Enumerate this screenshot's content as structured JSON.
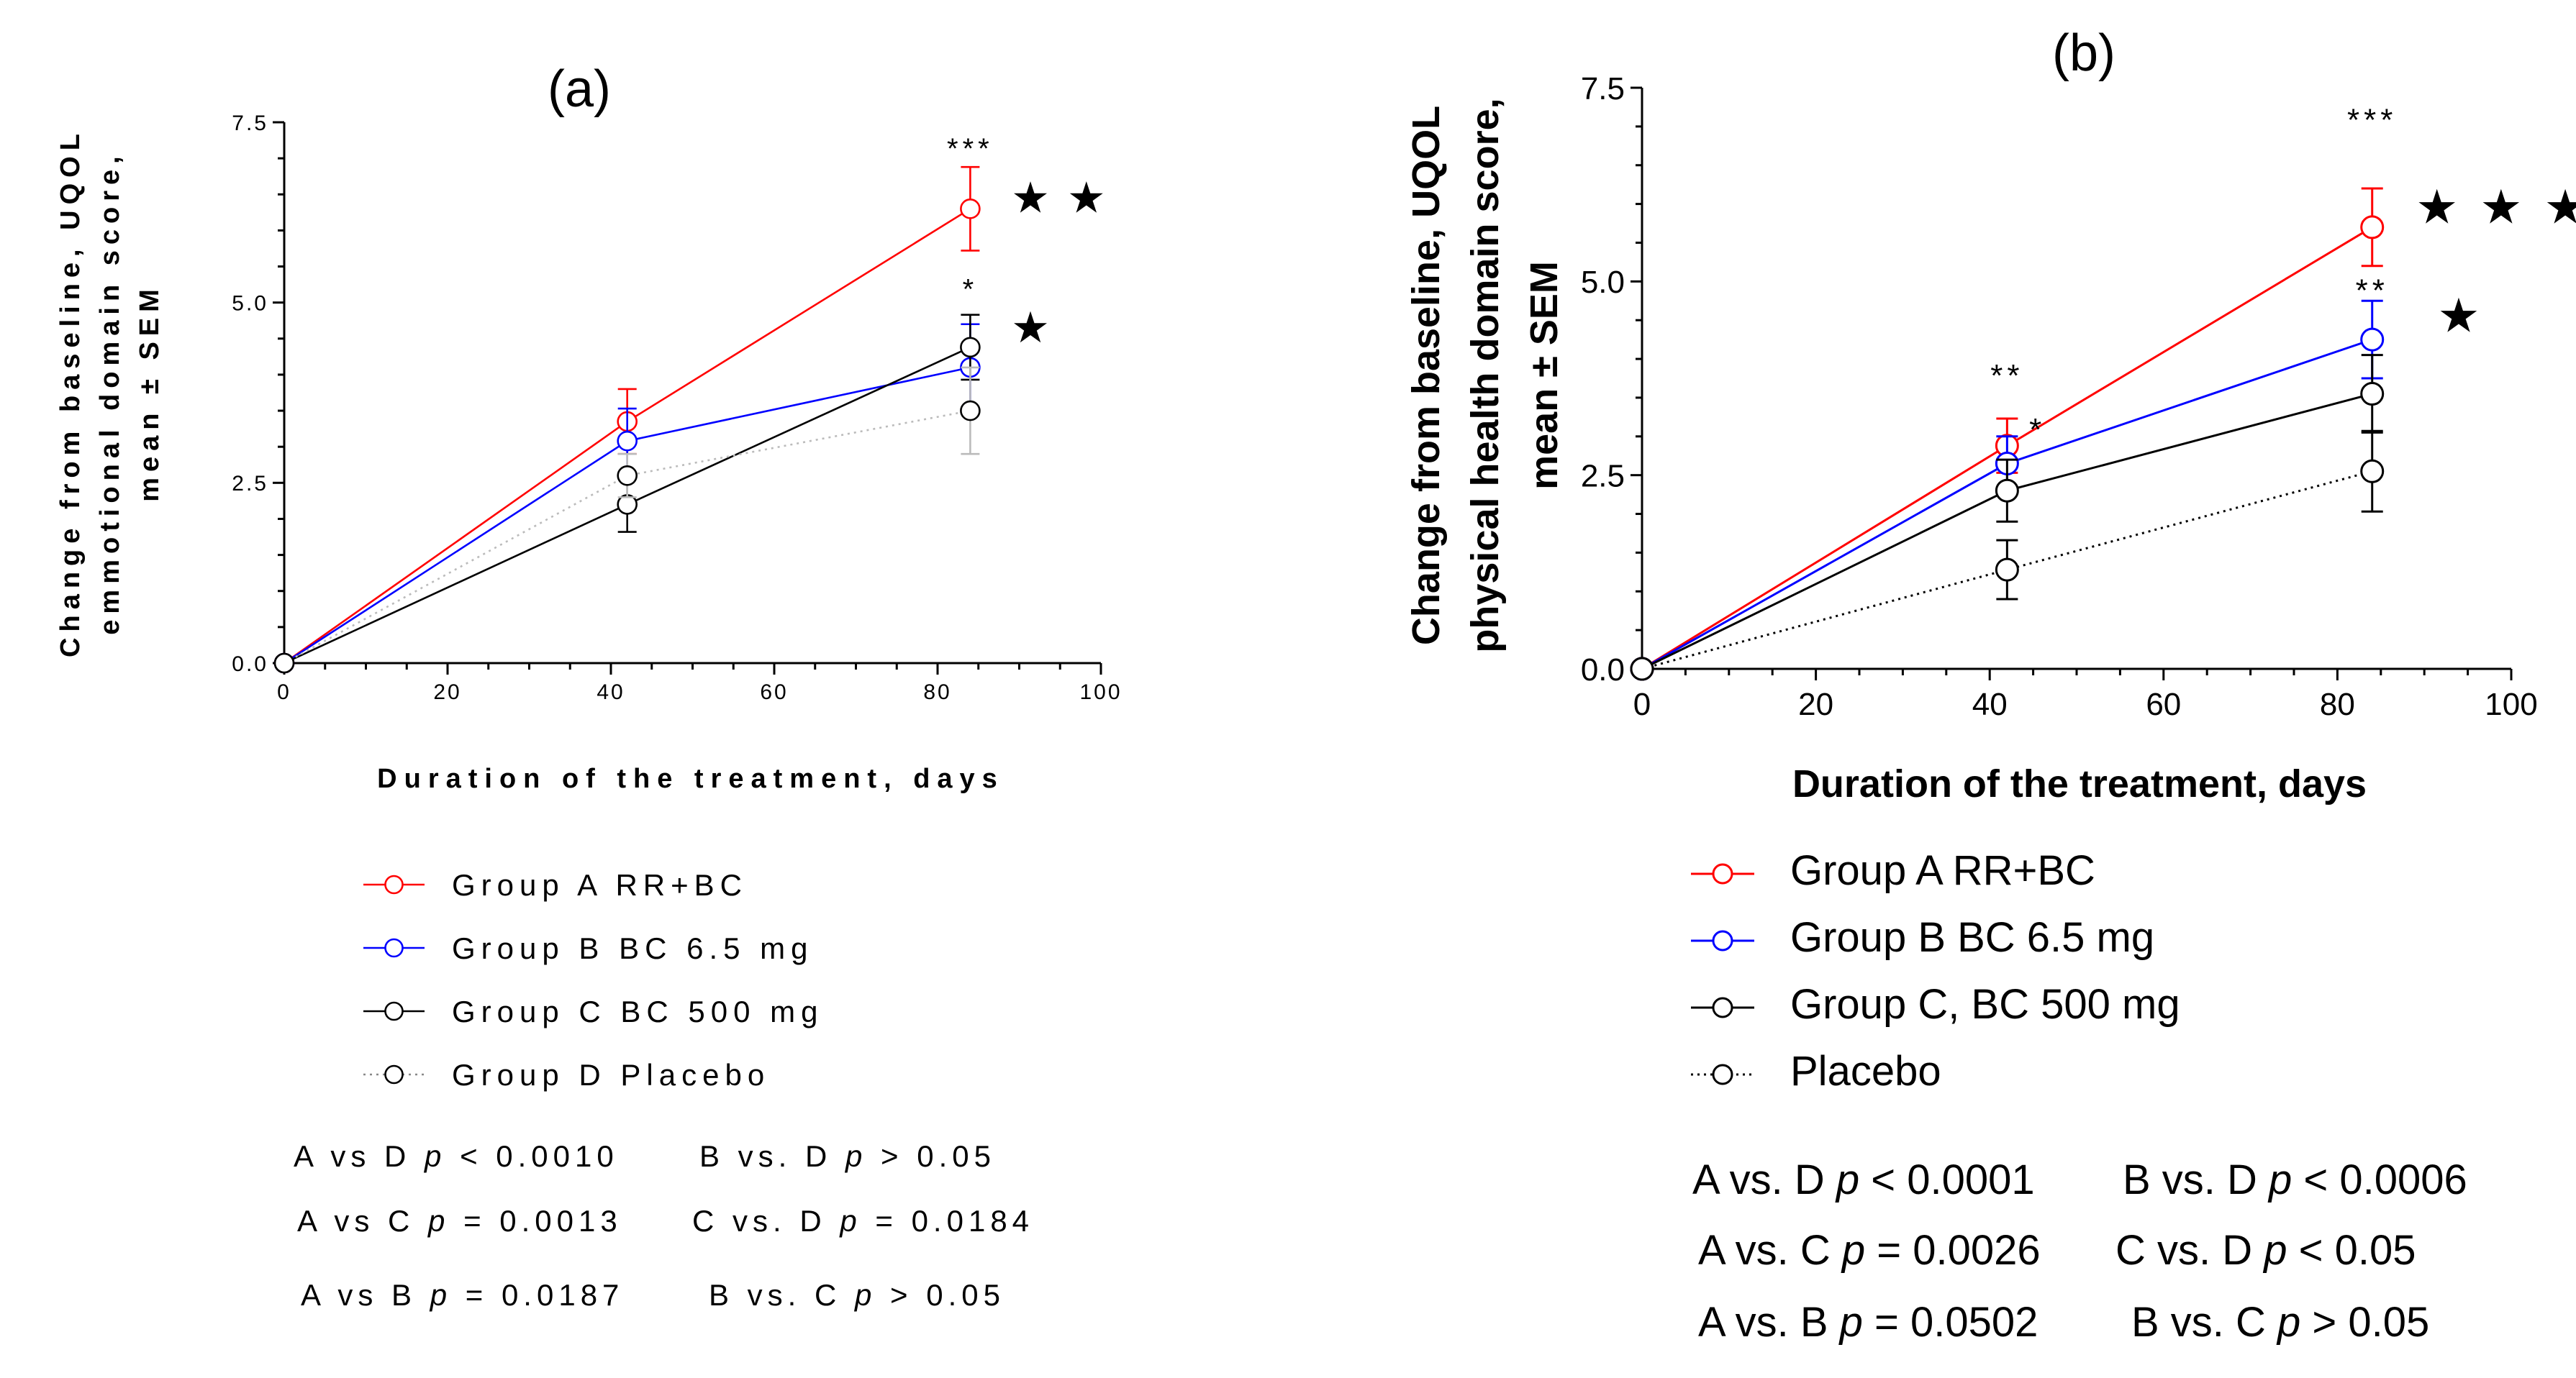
{
  "chart_data": [
    {
      "type": "line",
      "title": "(a)",
      "xlabel": "Duration of the treatment, days",
      "ylabel_lines": [
        "Change from baseline, UQOL",
        "emmotional domain score,",
        "mean ± SEM"
      ],
      "xlim": [
        0,
        100
      ],
      "ylim": [
        0,
        7.5
      ],
      "xticks": [
        "0",
        "20",
        "40",
        "60",
        "80",
        "100"
      ],
      "yticks": [
        "0.0",
        "2.5",
        "5.0",
        "7.5"
      ],
      "series": [
        {
          "name": "Group A RR+BC",
          "color": "#ff0000",
          "dash": "solid",
          "points": [
            {
              "x": 0,
              "y": 0,
              "sem": 0
            },
            {
              "x": 42,
              "y": 3.35,
              "sem": 0.45
            },
            {
              "x": 84,
              "y": 6.3,
              "sem": 0.58
            }
          ]
        },
        {
          "name": "Group B BC 6.5 mg",
          "color": "#0000ff",
          "dash": "solid",
          "points": [
            {
              "x": 0,
              "y": 0,
              "sem": 0
            },
            {
              "x": 42,
              "y": 3.08,
              "sem": 0.45
            },
            {
              "x": 84,
              "y": 4.1,
              "sem": 0.6
            }
          ]
        },
        {
          "name": "Group C BC 500 mg",
          "color": "#000000",
          "dash": "solid",
          "points": [
            {
              "x": 0,
              "y": 0,
              "sem": 0
            },
            {
              "x": 42,
              "y": 2.2,
              "sem": 0.38
            },
            {
              "x": 84,
              "y": 4.38,
              "sem": 0.45
            }
          ]
        },
        {
          "name": "Group D Placebo",
          "color": "#bbbbbb",
          "dash": "dotted",
          "points": [
            {
              "x": 0,
              "y": 0,
              "sem": 0
            },
            {
              "x": 42,
              "y": 2.6,
              "sem": 0.3
            },
            {
              "x": 84,
              "y": 3.5,
              "sem": 0.6
            }
          ]
        }
      ],
      "annotations": [
        {
          "text": "***",
          "x": 84,
          "y": 7.0
        },
        {
          "text": "*",
          "x": 84,
          "y": 5.05
        }
      ],
      "stars": [
        {
          "text": "★★",
          "x": 89,
          "y": 6.25
        },
        {
          "text": "★",
          "x": 89,
          "y": 4.45
        }
      ],
      "legend": [
        "Group A RR+BC",
        "Group B BC 6.5 mg",
        "Group C BC 500 mg",
        "Group D Placebo"
      ],
      "stats": [
        [
          "A vs D ",
          "p",
          " < 0.0010",
          "B vs. D ",
          "p",
          " > 0.05"
        ],
        [
          "A vs C ",
          "p",
          " = 0.0013",
          "C vs. D ",
          "p",
          " = 0.0184"
        ],
        [
          "A vs B ",
          "p",
          " = 0.0187",
          "B vs. C ",
          "p",
          " > 0.05"
        ]
      ]
    },
    {
      "type": "line",
      "title": "(b)",
      "xlabel": "Duration of the treatment, days",
      "ylabel_lines": [
        "Change from baseline, UQOL",
        "physical health domain score,",
        "mean ± SEM"
      ],
      "xlim": [
        0,
        100
      ],
      "ylim": [
        0,
        7.5
      ],
      "xticks": [
        "0",
        "20",
        "40",
        "60",
        "80",
        "100"
      ],
      "yticks": [
        "0.0",
        "2.5",
        "5.0",
        "7.5"
      ],
      "series": [
        {
          "name": "Group A RR+BC",
          "color": "#ff0000",
          "dash": "solid",
          "points": [
            {
              "x": 0,
              "y": 0,
              "sem": 0
            },
            {
              "x": 42,
              "y": 2.88,
              "sem": 0.35
            },
            {
              "x": 84,
              "y": 5.7,
              "sem": 0.5
            }
          ]
        },
        {
          "name": "Group B BC 6.5 mg",
          "color": "#0000ff",
          "dash": "solid",
          "points": [
            {
              "x": 0,
              "y": 0,
              "sem": 0
            },
            {
              "x": 42,
              "y": 2.65,
              "sem": 0.35
            },
            {
              "x": 84,
              "y": 4.25,
              "sem": 0.5
            }
          ]
        },
        {
          "name": "Group C, BC 500 mg",
          "color": "#000000",
          "dash": "solid",
          "points": [
            {
              "x": 0,
              "y": 0,
              "sem": 0
            },
            {
              "x": 42,
              "y": 2.3,
              "sem": 0.4
            },
            {
              "x": 84,
              "y": 3.55,
              "sem": 0.5
            }
          ]
        },
        {
          "name": "Placebo",
          "color": "#000000",
          "dash": "dotted",
          "points": [
            {
              "x": 0,
              "y": 0,
              "sem": 0
            },
            {
              "x": 42,
              "y": 1.28,
              "sem": 0.38
            },
            {
              "x": 84,
              "y": 2.55,
              "sem": 0.52
            }
          ]
        }
      ],
      "annotations": [
        {
          "text": "**",
          "x": 42,
          "y": 3.65
        },
        {
          "text": "*",
          "x": 45.5,
          "y": 2.95
        },
        {
          "text": "***",
          "x": 84,
          "y": 6.95
        },
        {
          "text": "**",
          "x": 84,
          "y": 4.75
        }
      ],
      "stars": [
        {
          "text": "★★★",
          "x": 89,
          "y": 5.75
        },
        {
          "text": "★",
          "x": 91.5,
          "y": 4.35
        }
      ],
      "legend": [
        "Group A RR+BC",
        "Group B BC 6.5 mg",
        "Group C, BC 500 mg",
        "Placebo"
      ],
      "stats": [
        [
          "A vs. D ",
          "p",
          " < 0.0001",
          "B vs. D ",
          "p",
          " < 0.0006"
        ],
        [
          "A vs. C ",
          "p",
          " = 0.0026",
          "C vs. D ",
          "p",
          " < 0.05"
        ],
        [
          "A vs. B ",
          "p",
          " = 0.0502",
          "B vs. C ",
          "p",
          " > 0.05"
        ]
      ]
    }
  ]
}
